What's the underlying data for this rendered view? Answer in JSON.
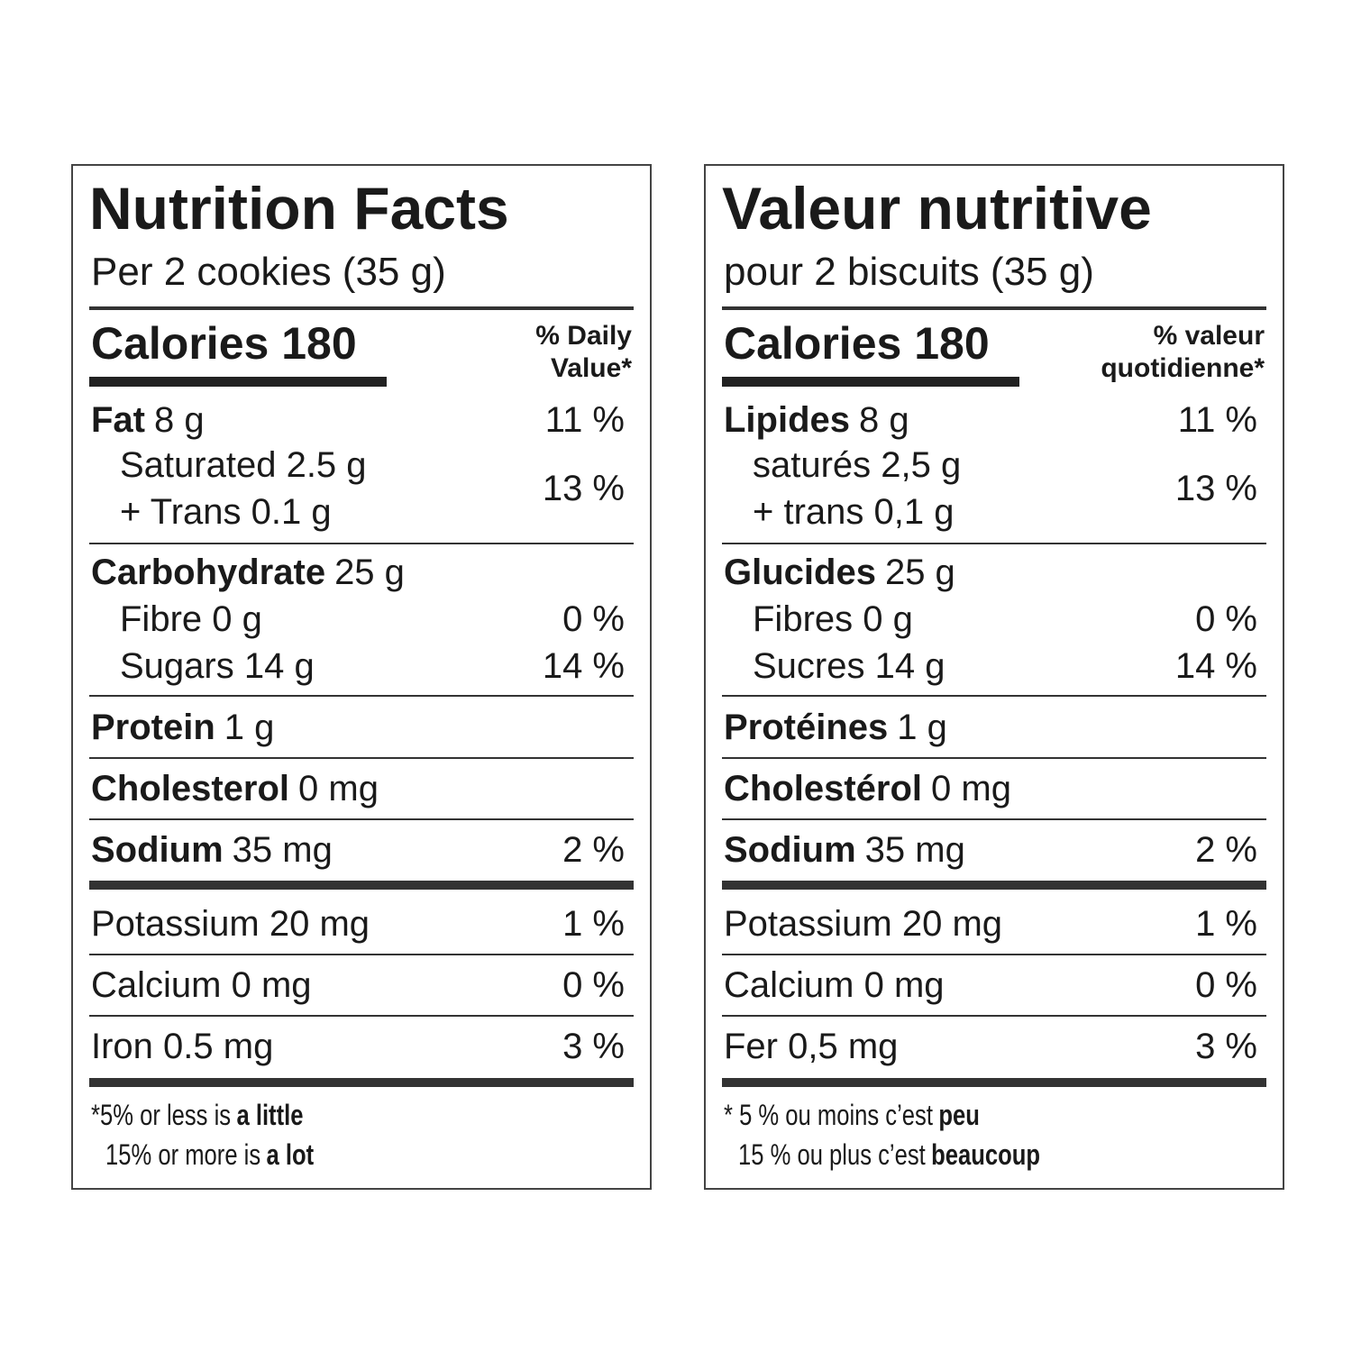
{
  "panels": [
    {
      "title": "Nutrition Facts",
      "serving": "Per 2 cookies (35 g)",
      "calories": "Calories 180",
      "dv_header": [
        "% Daily",
        "Value*"
      ],
      "fat": {
        "name": "Fat",
        "amount": "8 g",
        "dv": "11 %"
      },
      "saturated": "Saturated 2.5 g",
      "trans": "+ Trans 0.1 g",
      "saturated_trans_dv": "13 %",
      "carbohydrate": {
        "name": "Carbohydrate",
        "amount": "25 g"
      },
      "fibre": {
        "label": "Fibre 0 g",
        "dv": "0 %"
      },
      "sugars": {
        "label": "Sugars 14 g",
        "dv": "14 %"
      },
      "protein": {
        "name": "Protein",
        "amount": "1 g"
      },
      "cholesterol": {
        "name": "Cholesterol",
        "amount": "0 mg"
      },
      "sodium": {
        "name": "Sodium",
        "amount": "35 mg",
        "dv": "2 %"
      },
      "potassium": {
        "label": "Potassium 20 mg",
        "dv": "1 %"
      },
      "calcium": {
        "label": "Calcium 0 mg",
        "dv": "0 %"
      },
      "iron": {
        "label": "Iron 0.5 mg",
        "dv": "3 %"
      },
      "footnote": [
        {
          "text": "*5% or less is",
          "bold": "a little"
        },
        {
          "text": "15% or more is",
          "bold": "a lot"
        }
      ]
    },
    {
      "title": "Valeur nutritive",
      "serving": "pour 2 biscuits (35 g)",
      "calories": "Calories 180",
      "dv_header": [
        "% valeur",
        "quotidienne*"
      ],
      "fat": {
        "name": "Lipides",
        "amount": "8 g",
        "dv": "11 %"
      },
      "saturated": "saturés 2,5 g",
      "trans": "+ trans 0,1 g",
      "saturated_trans_dv": "13 %",
      "carbohydrate": {
        "name": "Glucides",
        "amount": "25 g"
      },
      "fibre": {
        "label": "Fibres 0 g",
        "dv": "0 %"
      },
      "sugars": {
        "label": "Sucres 14 g",
        "dv": "14 %"
      },
      "protein": {
        "name": "Protéines",
        "amount": "1 g"
      },
      "cholesterol": {
        "name": "Cholestérol",
        "amount": "0 mg"
      },
      "sodium": {
        "name": "Sodium",
        "amount": "35 mg",
        "dv": "2 %"
      },
      "potassium": {
        "label": "Potassium 20 mg",
        "dv": "1 %"
      },
      "calcium": {
        "label": "Calcium 0 mg",
        "dv": "0 %"
      },
      "iron": {
        "label": "Fer 0,5 mg",
        "dv": "3 %"
      },
      "footnote": [
        {
          "text": "* 5 % ou moins c’est",
          "bold": "peu"
        },
        {
          "text": "15 % ou plus c’est",
          "bold": "beaucoup"
        }
      ]
    }
  ]
}
